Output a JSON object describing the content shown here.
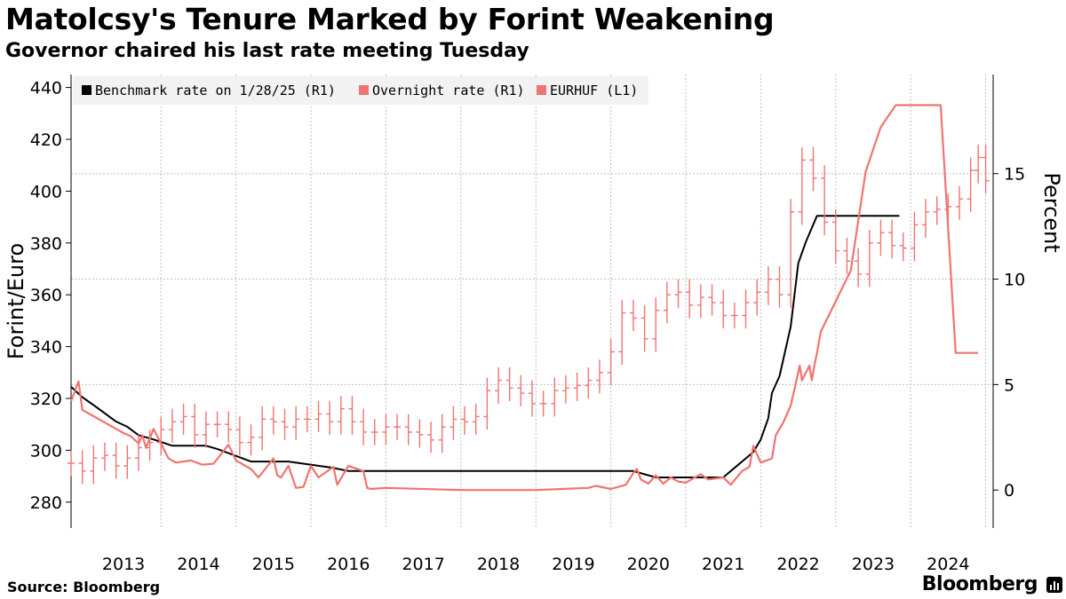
{
  "header": {
    "title": "Matolcsy's Tenure Marked by Forint Weakening",
    "subtitle": "Governor chaired his last rate meeting Tuesday"
  },
  "footer": {
    "source": "Source: Bloomberg",
    "brand": "Bloomberg"
  },
  "colors": {
    "benchmark": "#000000",
    "overnight": "#f07470",
    "eurhuf": "#f07470",
    "grid": "#bfbfbf"
  },
  "chart_data": {
    "type": "line",
    "title": "Matolcsy's Tenure Marked by Forint Weakening",
    "subtitle": "Governor chaired his last rate meeting Tuesday",
    "left_axis": {
      "label": "Forint/Euro",
      "ylim": [
        270,
        445
      ],
      "ticks": [
        280,
        300,
        320,
        340,
        360,
        380,
        400,
        420,
        440
      ]
    },
    "right_axis": {
      "label": "Percent",
      "ylim": [
        -1.8,
        19.7
      ],
      "ticks": [
        0,
        5,
        10,
        15
      ]
    },
    "x_axis": {
      "range": [
        2012.8,
        2025.1
      ],
      "ticks": [
        "2013",
        "2014",
        "2015",
        "2016",
        "2017",
        "2018",
        "2019",
        "2020",
        "2021",
        "2022",
        "2023",
        "2024"
      ]
    },
    "grid": true,
    "legend_position": "top-left",
    "series": [
      {
        "name": "Benchmark rate on 1/28/25 (R1)",
        "axis": "right",
        "style": "line",
        "x": [
          2012.8,
          2012.95,
          2013.15,
          2013.4,
          2013.55,
          2013.7,
          2013.9,
          2014.15,
          2014.6,
          2014.75,
          2015.2,
          2015.4,
          2015.7,
          2016.3,
          2016.5,
          2016.8,
          2020.3,
          2020.6,
          2021.5,
          2021.55,
          2021.7,
          2021.8,
          2021.9,
          2022.0,
          2022.1,
          2022.15,
          2022.25,
          2022.4,
          2022.5,
          2022.6,
          2022.75,
          2022.8,
          2023.85
        ],
        "y": [
          4.9,
          4.4,
          3.9,
          3.25,
          3.0,
          2.6,
          2.4,
          2.1,
          2.1,
          1.95,
          1.35,
          1.35,
          1.35,
          1.05,
          0.9,
          0.9,
          0.9,
          0.6,
          0.6,
          0.75,
          1.2,
          1.5,
          1.8,
          2.4,
          3.4,
          4.6,
          5.4,
          7.75,
          10.75,
          11.75,
          13.0,
          13.0,
          13.0
        ]
      },
      {
        "name": "Overnight rate (R1)",
        "axis": "right",
        "style": "line",
        "x": [
          2012.8,
          2012.9,
          2012.95,
          2013.1,
          2013.3,
          2013.5,
          2013.6,
          2013.7,
          2013.75,
          2013.8,
          2013.9,
          2014.0,
          2014.1,
          2014.2,
          2014.4,
          2014.55,
          2014.7,
          2014.8,
          2014.9,
          2015.0,
          2015.2,
          2015.3,
          2015.5,
          2015.55,
          2015.6,
          2015.7,
          2015.8,
          2015.9,
          2016.0,
          2016.1,
          2016.3,
          2016.35,
          2016.5,
          2016.7,
          2016.75,
          2016.8,
          2017.0,
          2018.0,
          2019.0,
          2019.7,
          2019.8,
          2020.0,
          2020.1,
          2020.2,
          2020.3,
          2020.35,
          2020.4,
          2020.5,
          2020.6,
          2020.7,
          2020.8,
          2020.9,
          2021.0,
          2021.1,
          2021.2,
          2021.3,
          2021.5,
          2021.6,
          2021.75,
          2021.85,
          2021.9,
          2022.0,
          2022.15,
          2022.2,
          2022.3,
          2022.4,
          2022.52,
          2022.55,
          2022.65,
          2022.68,
          2022.72,
          2022.75,
          2022.8,
          2023.2,
          2023.4,
          2023.6,
          2023.8,
          2024.0,
          2024.2,
          2024.4,
          2024.6,
          2024.7,
          2024.9
        ],
        "y": [
          4.2,
          5.15,
          3.8,
          3.5,
          3.1,
          2.7,
          2.55,
          2.2,
          2.6,
          2.0,
          2.9,
          2.2,
          1.5,
          1.3,
          1.4,
          1.2,
          1.25,
          1.7,
          2.15,
          1.4,
          1.0,
          0.6,
          1.5,
          0.7,
          0.6,
          1.15,
          0.1,
          0.15,
          1.15,
          0.6,
          1.1,
          0.25,
          1.15,
          0.9,
          0.1,
          0.05,
          0.1,
          0.0,
          0.0,
          0.1,
          0.2,
          0.05,
          0.15,
          0.25,
          0.8,
          1.0,
          0.5,
          0.3,
          0.7,
          0.3,
          0.6,
          0.4,
          0.35,
          0.55,
          0.75,
          0.5,
          0.6,
          0.25,
          0.9,
          1.1,
          2.1,
          1.3,
          1.5,
          2.6,
          3.2,
          4.0,
          5.9,
          5.2,
          5.9,
          5.2,
          6.0,
          6.5,
          7.5,
          10.4,
          15.1,
          17.2,
          18.25,
          18.25,
          18.25,
          18.25,
          6.5,
          6.5,
          6.5
        ]
      },
      {
        "name": "EURHUF (L1)",
        "axis": "left",
        "style": "ohlc",
        "x": [
          2012.8,
          2012.95,
          2013.1,
          2013.25,
          2013.4,
          2013.55,
          2013.7,
          2013.85,
          2014.0,
          2014.15,
          2014.3,
          2014.45,
          2014.6,
          2014.75,
          2014.9,
          2015.05,
          2015.2,
          2015.35,
          2015.5,
          2015.65,
          2015.8,
          2015.95,
          2016.1,
          2016.25,
          2016.4,
          2016.55,
          2016.7,
          2016.85,
          2017.0,
          2017.15,
          2017.3,
          2017.45,
          2017.6,
          2017.75,
          2017.9,
          2018.05,
          2018.2,
          2018.35,
          2018.5,
          2018.65,
          2018.8,
          2018.95,
          2019.1,
          2019.25,
          2019.4,
          2019.55,
          2019.7,
          2019.85,
          2020.0,
          2020.15,
          2020.3,
          2020.45,
          2020.6,
          2020.75,
          2020.9,
          2021.05,
          2021.2,
          2021.35,
          2021.5,
          2021.65,
          2021.8,
          2021.95,
          2022.1,
          2022.25,
          2022.4,
          2022.55,
          2022.7,
          2022.85,
          2023.0,
          2023.15,
          2023.3,
          2023.45,
          2023.6,
          2023.75,
          2023.9,
          2024.05,
          2024.2,
          2024.35,
          2024.5,
          2024.65,
          2024.8,
          2024.9,
          2025.0
        ],
        "y": [
          295,
          292,
          297,
          298,
          294,
          297,
          301,
          303,
          308,
          311,
          313,
          306,
          310,
          310,
          308,
          303,
          305,
          312,
          311,
          309,
          312,
          312,
          314,
          311,
          316,
          311,
          307,
          307,
          309,
          309,
          307,
          306,
          304,
          309,
          312,
          311,
          313,
          323,
          327,
          324,
          322,
          318,
          318,
          323,
          324,
          325,
          327,
          330,
          338,
          353,
          351,
          343,
          354,
          360,
          361,
          356,
          359,
          357,
          352,
          352,
          357,
          361,
          366,
          360,
          392,
          412,
          405,
          388,
          377,
          373,
          368,
          380,
          384,
          379,
          378,
          387,
          392,
          393,
          394,
          397,
          408,
          413,
          404
        ]
      }
    ]
  }
}
